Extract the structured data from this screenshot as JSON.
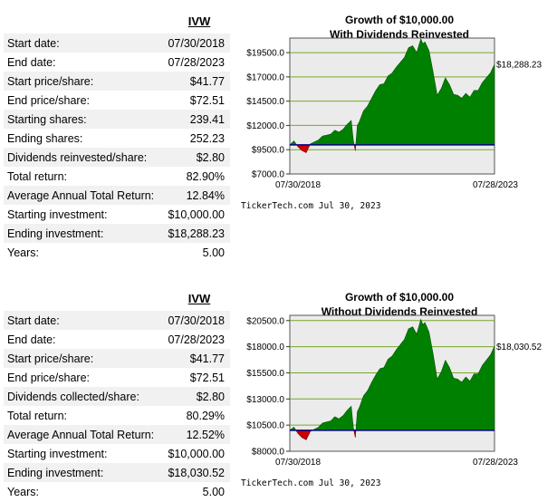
{
  "sections": [
    {
      "ticker": "IVW",
      "rows": [
        {
          "label": "Start date:",
          "value": "07/30/2018"
        },
        {
          "label": "End date:",
          "value": "07/28/2023"
        },
        {
          "label": "Start price/share:",
          "value": "$41.77"
        },
        {
          "label": "End price/share:",
          "value": "$72.51"
        },
        {
          "label": "Starting shares:",
          "value": "239.41"
        },
        {
          "label": "Ending shares:",
          "value": "252.23"
        },
        {
          "label": "Dividends reinvested/share:",
          "value": "$2.80"
        },
        {
          "label": "Total return:",
          "value": "82.90%"
        },
        {
          "label": "Average Annual Total Return:",
          "value": "12.84%"
        },
        {
          "label": "Starting investment:",
          "value": "$10,000.00"
        },
        {
          "label": "Ending investment:",
          "value": "$18,288.23"
        },
        {
          "label": "Years:",
          "value": "5.00"
        }
      ]
    },
    {
      "ticker": "IVW",
      "rows": [
        {
          "label": "Start date:",
          "value": "07/30/2018"
        },
        {
          "label": "End date:",
          "value": "07/28/2023"
        },
        {
          "label": "Start price/share:",
          "value": "$41.77"
        },
        {
          "label": "End price/share:",
          "value": "$72.51"
        },
        {
          "label": "Dividends collected/share:",
          "value": "$2.80"
        },
        {
          "label": "Total return:",
          "value": "80.29%"
        },
        {
          "label": "Average Annual Total Return:",
          "value": "12.52%"
        },
        {
          "label": "Starting investment:",
          "value": "$10,000.00"
        },
        {
          "label": "Ending investment:",
          "value": "$18,030.52"
        },
        {
          "label": "Years:",
          "value": "5.00"
        }
      ]
    }
  ],
  "chart_data": [
    {
      "type": "area",
      "title": [
        "Growth of $10,000.00",
        "With Dividends Reinvested"
      ],
      "ylim": [
        7000,
        21000
      ],
      "y_ticks": [
        7000,
        9500,
        12000,
        14500,
        17000,
        19500
      ],
      "y_tick_labels": [
        "$7000.0",
        "$9500.0",
        "$12000.0",
        "$14500.0",
        "$17000.0",
        "$19500.0"
      ],
      "x_labels": [
        "07/30/2018",
        "07/28/2023"
      ],
      "baseline": 10000,
      "end_label": "$18,288.23",
      "x": [
        0,
        0.02,
        0.04,
        0.06,
        0.08,
        0.1,
        0.12,
        0.14,
        0.16,
        0.18,
        0.2,
        0.22,
        0.24,
        0.26,
        0.28,
        0.3,
        0.31,
        0.32,
        0.33,
        0.34,
        0.36,
        0.38,
        0.4,
        0.42,
        0.44,
        0.46,
        0.48,
        0.5,
        0.52,
        0.54,
        0.56,
        0.58,
        0.6,
        0.62,
        0.64,
        0.65,
        0.66,
        0.68,
        0.7,
        0.72,
        0.74,
        0.76,
        0.78,
        0.8,
        0.82,
        0.84,
        0.86,
        0.88,
        0.9,
        0.92,
        0.94,
        0.96,
        0.98,
        1.0
      ],
      "values": [
        10000,
        10400,
        9800,
        9400,
        9200,
        10100,
        10300,
        10500,
        10900,
        11000,
        11100,
        11500,
        11300,
        11600,
        12100,
        12500,
        10500,
        9400,
        12000,
        12400,
        13500,
        14000,
        14800,
        15600,
        16200,
        16300,
        17100,
        17400,
        18000,
        18500,
        19000,
        20000,
        20200,
        19500,
        20900,
        20400,
        20600,
        19700,
        17500,
        15100,
        15800,
        16900,
        16200,
        15200,
        15100,
        14800,
        15300,
        14900,
        15600,
        15600,
        16400,
        16900,
        17400,
        18288
      ]
    },
    {
      "type": "area",
      "title": [
        "Growth of $10,000.00",
        "Without Dividends Reinvested"
      ],
      "ylim": [
        8000,
        21000
      ],
      "y_ticks": [
        8000,
        10500,
        13000,
        15500,
        18000,
        20500
      ],
      "y_tick_labels": [
        "$8000.0",
        "$10500.0",
        "$13000.0",
        "$15500.0",
        "$18000.0",
        "$20500.0"
      ],
      "x_labels": [
        "07/30/2018",
        "07/28/2023"
      ],
      "baseline": 10000,
      "end_label": "$18,030.52",
      "x": [
        0,
        0.02,
        0.04,
        0.06,
        0.08,
        0.1,
        0.12,
        0.14,
        0.16,
        0.18,
        0.2,
        0.22,
        0.24,
        0.26,
        0.28,
        0.3,
        0.31,
        0.32,
        0.33,
        0.34,
        0.36,
        0.38,
        0.4,
        0.42,
        0.44,
        0.46,
        0.48,
        0.5,
        0.52,
        0.54,
        0.56,
        0.58,
        0.6,
        0.62,
        0.64,
        0.65,
        0.66,
        0.68,
        0.7,
        0.72,
        0.74,
        0.76,
        0.78,
        0.8,
        0.82,
        0.84,
        0.86,
        0.88,
        0.9,
        0.92,
        0.94,
        0.96,
        0.98,
        1.0
      ],
      "values": [
        10000,
        10300,
        9700,
        9300,
        9100,
        9900,
        10100,
        10300,
        10700,
        10800,
        10900,
        11300,
        11100,
        11400,
        11900,
        12300,
        10300,
        9300,
        11800,
        12200,
        13300,
        13800,
        14600,
        15300,
        15900,
        16000,
        16800,
        17100,
        17700,
        18200,
        18700,
        19700,
        19900,
        19200,
        20600,
        20100,
        20300,
        19400,
        17300,
        14900,
        15600,
        16700,
        16000,
        15000,
        14900,
        14600,
        15100,
        14700,
        15400,
        15400,
        16200,
        16700,
        17200,
        18030
      ]
    }
  ],
  "credit": "TickerTech.com  Jul 30, 2023",
  "colors": {
    "fill_up": "#008000",
    "fill_down": "#cc0000",
    "baseline": "#000080",
    "grid": "#78a828",
    "plot_bg": "#ebebeb"
  }
}
